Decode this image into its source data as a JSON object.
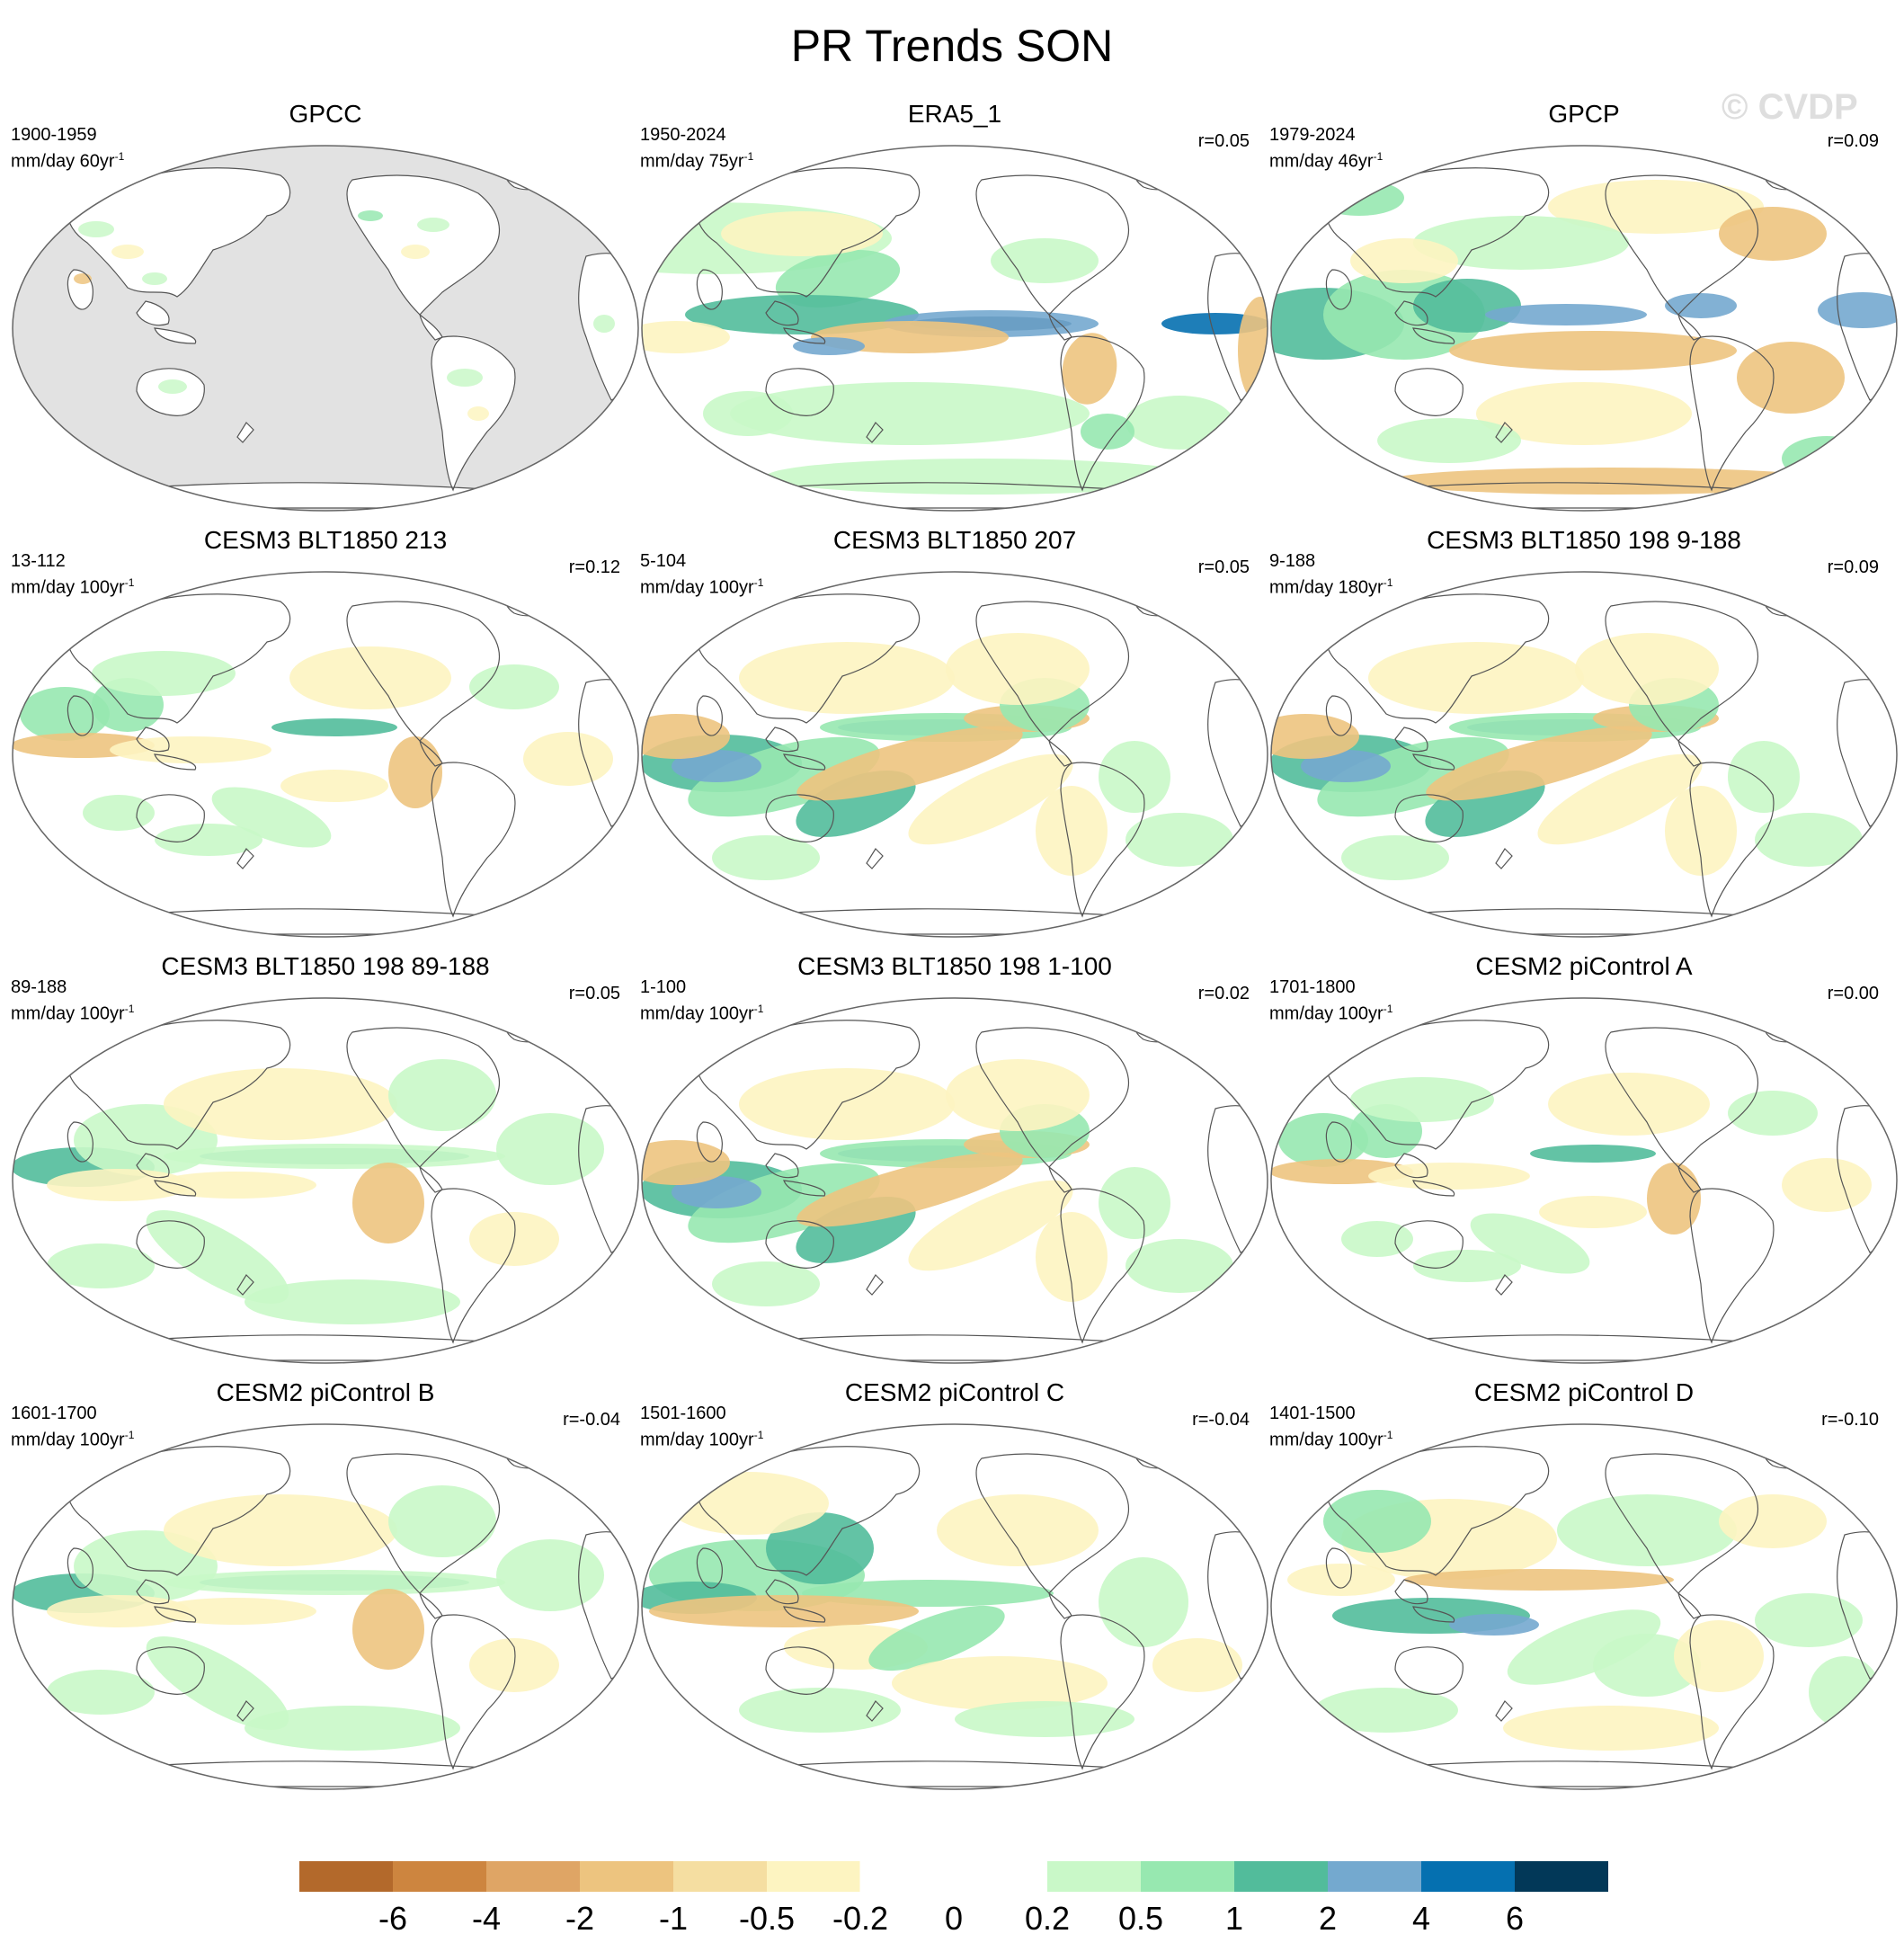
{
  "figure": {
    "title": "PR Trends SON",
    "watermark": "© CVDP"
  },
  "panels": [
    {
      "title": "GPCC",
      "period": "1900-1959",
      "units": "mm/day 60yr",
      "units_exp": "-1",
      "corr": "",
      "landmask": true,
      "pattern": "land-only"
    },
    {
      "title": "ERA5_1",
      "period": "1950-2024",
      "units": "mm/day 75yr",
      "units_exp": "-1",
      "corr": "r=0.05",
      "landmask": false,
      "pattern": "strong-equatorial-wet"
    },
    {
      "title": "GPCP",
      "period": "1979-2024",
      "units": "mm/day 46yr",
      "units_exp": "-1",
      "corr": "r=0.09",
      "landmask": false,
      "pattern": "la-nina-like"
    },
    {
      "title": "CESM3 BLT1850 213",
      "period": "13-112",
      "units": "mm/day 100yr",
      "units_exp": "-1",
      "corr": "r=0.12",
      "landmask": false,
      "pattern": "weak-itcz"
    },
    {
      "title": "CESM3 BLT1850 207",
      "period": "5-104",
      "units": "mm/day 100yr",
      "units_exp": "-1",
      "corr": "r=0.05",
      "landmask": false,
      "pattern": "spcz-wet"
    },
    {
      "title": "CESM3 BLT1850 198 9-188",
      "period": "9-188",
      "units": "mm/day 180yr",
      "units_exp": "-1",
      "corr": "r=0.09",
      "landmask": false,
      "pattern": "spcz-wet"
    },
    {
      "title": "CESM3 BLT1850 198 89-188",
      "period": "89-188",
      "units": "mm/day 100yr",
      "units_exp": "-1",
      "corr": "r=0.05",
      "landmask": false,
      "pattern": "itcz-line"
    },
    {
      "title": "CESM3 BLT1850 198 1-100",
      "period": "1-100",
      "units": "mm/day 100yr",
      "units_exp": "-1",
      "corr": "r=0.02",
      "landmask": false,
      "pattern": "spcz-wet"
    },
    {
      "title": "CESM2 piControl A",
      "period": "1701-1800",
      "units": "mm/day 100yr",
      "units_exp": "-1",
      "corr": "r=0.00",
      "landmask": false,
      "pattern": "weak-itcz"
    },
    {
      "title": "CESM2 piControl B",
      "period": "1601-1700",
      "units": "mm/day 100yr",
      "units_exp": "-1",
      "corr": "r=-0.04",
      "landmask": false,
      "pattern": "itcz-line"
    },
    {
      "title": "CESM2 piControl C",
      "period": "1501-1600",
      "units": "mm/day 100yr",
      "units_exp": "-1",
      "corr": "r=-0.04",
      "landmask": false,
      "pattern": "west-wet"
    },
    {
      "title": "CESM2 piControl D",
      "period": "1401-1500",
      "units": "mm/day 100yr",
      "units_exp": "-1",
      "corr": "r=-0.10",
      "landmask": false,
      "pattern": "south-wet"
    }
  ],
  "colorbar": {
    "labels": [
      "-6",
      "-4",
      "-2",
      "-1",
      "-0.5",
      "-0.2",
      "0",
      "0.2",
      "0.5",
      "1",
      "2",
      "4",
      "6"
    ],
    "colors": [
      "#b3692b",
      "#cd853f",
      "#dfa565",
      "#edc47f",
      "#f5dea1",
      "#fdf4c1",
      "#ffffff",
      "#ffffff",
      "#c9f8c8",
      "#97e8b0",
      "#52bc9b",
      "#74a9cf",
      "#0570b0",
      "#023858"
    ]
  }
}
